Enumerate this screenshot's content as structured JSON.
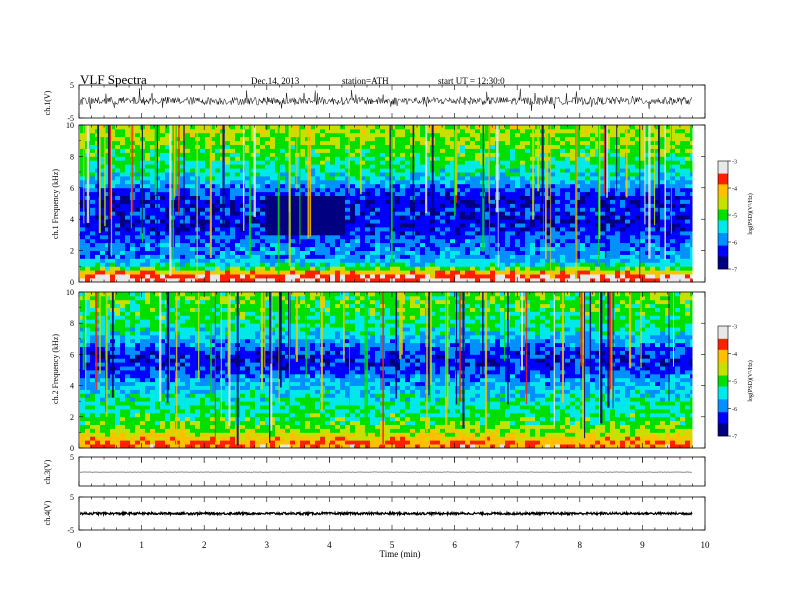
{
  "header": {
    "title": "VLF Spectra",
    "date": "Dec.14, 2013",
    "station": "station=ATH",
    "start": "start UT = 12:30:0"
  },
  "chart_data": [
    {
      "type": "line",
      "panel": "ch1-waveform",
      "ylabel": "ch.1(V)",
      "ylim": [
        -5,
        5
      ],
      "yticks": [
        5,
        -5
      ],
      "baseline": 0.2,
      "amplitude": 1.2
    },
    {
      "type": "heatmap",
      "panel": "ch1-spectrogram",
      "ylabel": "ch.1 Frequency (kHz)",
      "ylim": [
        0,
        10
      ],
      "yticks": [
        0,
        2,
        4,
        6,
        8,
        10
      ],
      "colorbar": {
        "label": "log(PSD)(V²/Hz)",
        "range": [
          -7,
          -3
        ],
        "ticks": [
          -3,
          -4,
          -5,
          -6,
          -7
        ]
      },
      "profile": [
        {
          "f": 0.3,
          "v": -3.4
        },
        {
          "f": 0.6,
          "v": -4.0
        },
        {
          "f": 1.0,
          "v": -5.3
        },
        {
          "f": 1.5,
          "v": -5.8
        },
        {
          "f": 2.0,
          "v": -5.9
        },
        {
          "f": 2.5,
          "v": -6.0
        },
        {
          "f": 3.0,
          "v": -6.2
        },
        {
          "f": 3.5,
          "v": -6.4
        },
        {
          "f": 4.0,
          "v": -6.4
        },
        {
          "f": 4.5,
          "v": -6.3
        },
        {
          "f": 5.0,
          "v": -6.5
        },
        {
          "f": 5.5,
          "v": -6.3
        },
        {
          "f": 6.0,
          "v": -6.0
        },
        {
          "f": 6.5,
          "v": -5.6
        },
        {
          "f": 7.0,
          "v": -5.4
        },
        {
          "f": 7.5,
          "v": -5.2
        },
        {
          "f": 8.0,
          "v": -5.0
        },
        {
          "f": 8.5,
          "v": -4.9
        },
        {
          "f": 9.0,
          "v": -4.8
        },
        {
          "f": 9.5,
          "v": -4.7
        },
        {
          "f": 10.0,
          "v": -4.6
        }
      ],
      "quiet_patch": {
        "t": [
          2.9,
          4.2
        ],
        "f": [
          3.0,
          5.5
        ],
        "v": -6.8
      },
      "sferic_count": 75
    },
    {
      "type": "heatmap",
      "panel": "ch2-spectrogram",
      "ylabel": "ch.2 Frequency (kHz)",
      "ylim": [
        0,
        10
      ],
      "yticks": [
        0,
        2,
        4,
        6,
        8,
        10
      ],
      "colorbar": {
        "label": "log(PSD)(V²/Hz)",
        "range": [
          -7,
          -3
        ],
        "ticks": [
          -3,
          -4,
          -5,
          -6,
          -7
        ]
      },
      "profile": [
        {
          "f": 0.3,
          "v": -3.8
        },
        {
          "f": 0.6,
          "v": -4.2
        },
        {
          "f": 1.0,
          "v": -4.6
        },
        {
          "f": 1.5,
          "v": -4.9
        },
        {
          "f": 2.0,
          "v": -5.1
        },
        {
          "f": 2.5,
          "v": -5.2
        },
        {
          "f": 3.0,
          "v": -5.3
        },
        {
          "f": 3.5,
          "v": -5.5
        },
        {
          "f": 4.0,
          "v": -5.7
        },
        {
          "f": 4.5,
          "v": -5.9
        },
        {
          "f": 5.0,
          "v": -6.2
        },
        {
          "f": 5.5,
          "v": -6.4
        },
        {
          "f": 6.0,
          "v": -6.3
        },
        {
          "f": 6.5,
          "v": -6.0
        },
        {
          "f": 7.0,
          "v": -5.7
        },
        {
          "f": 7.5,
          "v": -5.4
        },
        {
          "f": 8.0,
          "v": -5.2
        },
        {
          "f": 8.5,
          "v": -5.1
        },
        {
          "f": 9.0,
          "v": -5.0
        },
        {
          "f": 9.5,
          "v": -4.9
        },
        {
          "f": 10.0,
          "v": -4.9
        }
      ],
      "sferic_count": 75
    },
    {
      "type": "line",
      "panel": "ch3-waveform",
      "ylabel": "ch.3(V)",
      "ylim": [
        -5,
        5
      ],
      "yticks": [
        5
      ],
      "baseline": -0.2,
      "amplitude": 0.05
    },
    {
      "type": "line",
      "panel": "ch4-waveform",
      "ylabel": "ch.4(V)",
      "ylim": [
        -5,
        5
      ],
      "yticks": [
        5,
        -5
      ],
      "baseline": 0.0,
      "amplitude": 0.35
    }
  ],
  "xaxis": {
    "label": "Time (min)",
    "xlim": [
      0,
      10
    ],
    "data_end": 9.8,
    "ticks": [
      "0",
      "1",
      "2",
      "3",
      "4",
      "5",
      "6",
      "7",
      "8",
      "9",
      "10"
    ]
  },
  "colors": {
    "scale": [
      "#000080",
      "#0000ff",
      "#0090ff",
      "#00e8e8",
      "#00e000",
      "#c8e000",
      "#ffc000",
      "#ff2000",
      "#e8e8e8"
    ],
    "trace": "#000000"
  }
}
